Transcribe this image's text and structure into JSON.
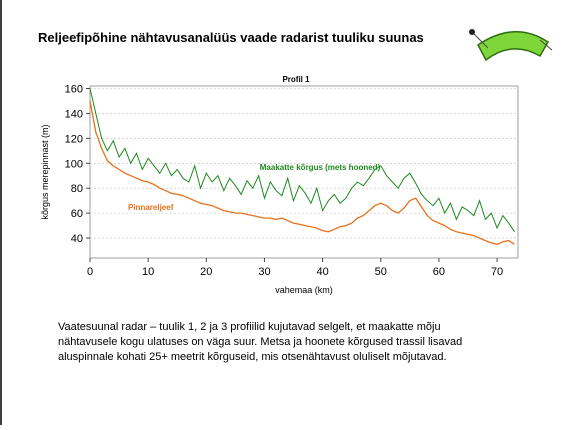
{
  "slide": {
    "title": "Reljeefipõhine nähtavusanalüüs vaade radarist tuuliku suunas",
    "body": [
      "Vaatesuunal radar – tuulik 1, 2 ja 3 profiilid kujutavad selgelt, et maakatte mõju",
      "nähtavusele kogu ulatuses on väga suur. Metsa ja hoonete kõrgused trassil lisavad",
      "aluspinnale kohati 25+ meetrit kõrguseid, mis otsenähtavust oluliselt mõjutavad."
    ]
  },
  "chart_data": {
    "type": "line",
    "title": "Profil 1",
    "x_label": "vahemaa (km)",
    "y_label": "kõrgus merepinnast (m)",
    "x": [
      0,
      1,
      2,
      3,
      4,
      5,
      6,
      7,
      8,
      9,
      10,
      11,
      12,
      13,
      14,
      15,
      16,
      17,
      18,
      19,
      20,
      21,
      22,
      23,
      24,
      25,
      26,
      27,
      28,
      29,
      30,
      31,
      32,
      33,
      34,
      35,
      36,
      37,
      38,
      39,
      40,
      41,
      42,
      43,
      44,
      45,
      46,
      47,
      48,
      49,
      50,
      51,
      52,
      53,
      54,
      55,
      56,
      57,
      58,
      59,
      60,
      61,
      62,
      63,
      64,
      65,
      66,
      67,
      68,
      69,
      70,
      71,
      72,
      73
    ],
    "series": [
      {
        "name": "Maakatte kõrgus (mets hooned)",
        "color": "#1e8a1e",
        "values": [
          160,
          140,
          120,
          110,
          118,
          105,
          112,
          100,
          108,
          95,
          104,
          98,
          92,
          100,
          90,
          95,
          88,
          85,
          98,
          80,
          92,
          85,
          90,
          78,
          88,
          82,
          75,
          86,
          80,
          90,
          72,
          85,
          78,
          74,
          88,
          70,
          82,
          76,
          68,
          80,
          62,
          70,
          75,
          68,
          72,
          80,
          85,
          82,
          88,
          95,
          98,
          90,
          85,
          80,
          88,
          92,
          84,
          75,
          70,
          66,
          72,
          60,
          68,
          55,
          65,
          62,
          58,
          70,
          55,
          60,
          48,
          58,
          52,
          45
        ]
      },
      {
        "name": "Pinnareljeef",
        "color": "#e8711c",
        "values": [
          150,
          125,
          112,
          102,
          98,
          95,
          92,
          90,
          88,
          86,
          85,
          83,
          80,
          78,
          76,
          75,
          74,
          72,
          70,
          68,
          67,
          66,
          64,
          62,
          61,
          60,
          60,
          59,
          58,
          57,
          56,
          56,
          55,
          56,
          54,
          52,
          51,
          50,
          49,
          48,
          46,
          45,
          47,
          49,
          50,
          52,
          56,
          58,
          62,
          66,
          68,
          66,
          62,
          60,
          64,
          70,
          72,
          65,
          58,
          54,
          52,
          50,
          47,
          45,
          44,
          43,
          42,
          40,
          38,
          36,
          35,
          37,
          38,
          35
        ]
      }
    ],
    "xlim": [
      0,
      73.6
    ],
    "ylim": [
      24,
      162
    ],
    "xticks": [
      0,
      10,
      20,
      30,
      40,
      50,
      60,
      70
    ],
    "yticks": [
      40,
      60,
      80,
      100,
      120,
      140,
      160
    ],
    "grid": true
  }
}
